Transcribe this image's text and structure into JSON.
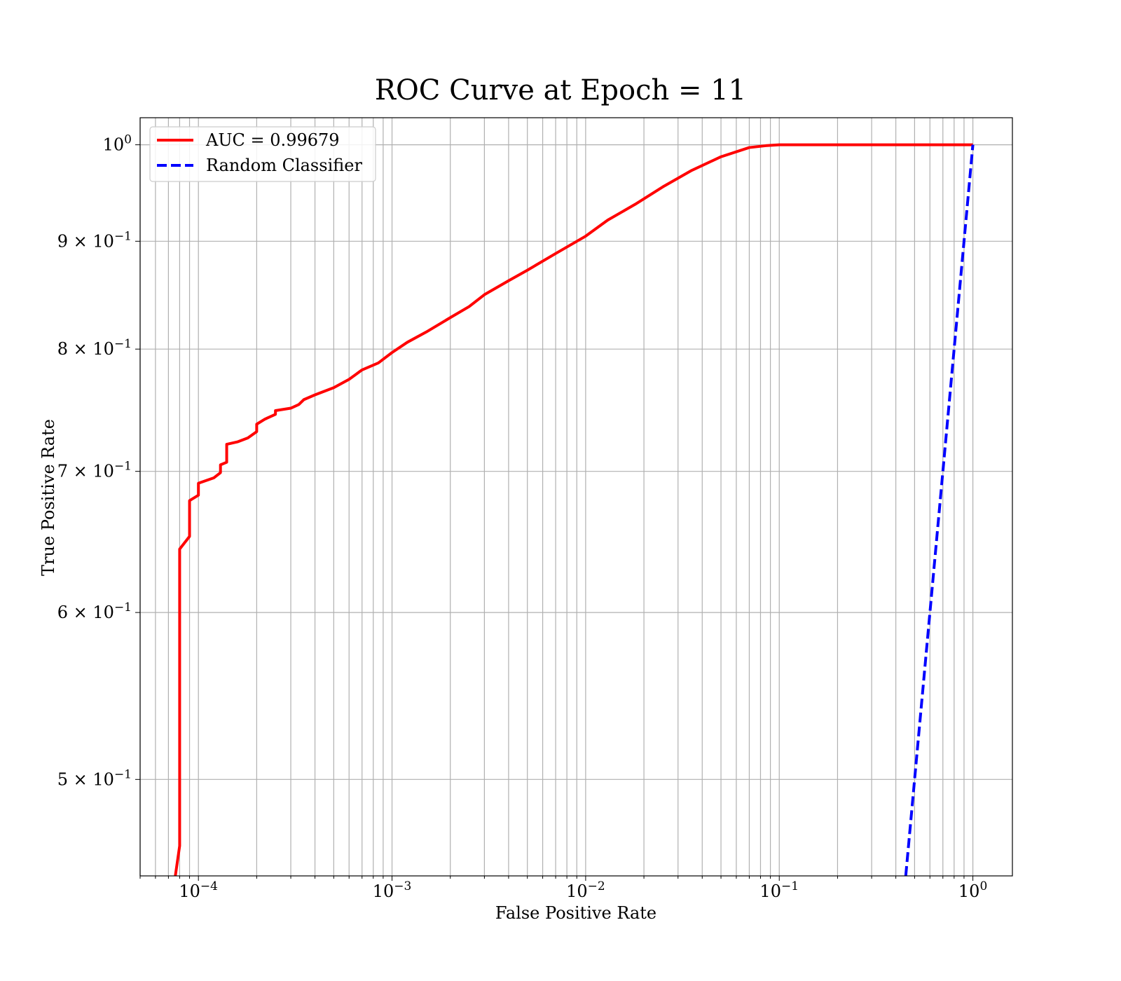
{
  "chart_data": {
    "type": "line",
    "title": "ROC Curve at Epoch = 11",
    "xlabel": "False Positive Rate",
    "ylabel": "True Positive Rate",
    "xscale": "log",
    "yscale": "log",
    "xlim": [
      5e-05,
      1.6
    ],
    "ylim": [
      0.45,
      1.03
    ],
    "grid": true,
    "legend_position": "upper-left",
    "x_ticks": [
      {
        "value": 0.0001,
        "base": "10",
        "exp": "−4"
      },
      {
        "value": 0.001,
        "base": "10",
        "exp": "−3"
      },
      {
        "value": 0.01,
        "base": "10",
        "exp": "−2"
      },
      {
        "value": 0.1,
        "base": "10",
        "exp": "−1"
      },
      {
        "value": 1,
        "base": "10",
        "exp": "0"
      }
    ],
    "y_ticks": [
      {
        "value": 1.0,
        "base": "10",
        "exp": "0"
      },
      {
        "value": 0.9,
        "base": "9 × 10",
        "exp": "−1"
      },
      {
        "value": 0.8,
        "base": "8 × 10",
        "exp": "−1"
      },
      {
        "value": 0.7,
        "base": "7 × 10",
        "exp": "−1"
      },
      {
        "value": 0.6,
        "base": "6 × 10",
        "exp": "−1"
      },
      {
        "value": 0.5,
        "base": "5 × 10",
        "exp": "−1"
      }
    ],
    "series": [
      {
        "name": "AUC = 0.99679",
        "color": "#ff0000",
        "style": "solid",
        "x": [
          7.6e-05,
          8e-05,
          8e-05,
          9e-05,
          9e-05,
          0.0001,
          0.0001,
          0.00012,
          0.00013,
          0.00013,
          0.00014,
          0.00014,
          0.00016,
          0.00018,
          0.0002,
          0.0002,
          0.00022,
          0.00025,
          0.00025,
          0.0003,
          0.00033,
          0.00035,
          0.0004,
          0.0005,
          0.0006,
          0.0007,
          0.00085,
          0.001,
          0.0012,
          0.0015,
          0.002,
          0.0025,
          0.003,
          0.004,
          0.005,
          0.007,
          0.01,
          0.013,
          0.018,
          0.025,
          0.035,
          0.05,
          0.07,
          0.085,
          0.1,
          0.15,
          0.3,
          0.5,
          1.0
        ],
        "y": [
          0.45,
          0.465,
          0.643,
          0.652,
          0.678,
          0.682,
          0.691,
          0.695,
          0.699,
          0.705,
          0.707,
          0.721,
          0.723,
          0.726,
          0.731,
          0.737,
          0.741,
          0.745,
          0.748,
          0.75,
          0.753,
          0.757,
          0.761,
          0.767,
          0.774,
          0.782,
          0.788,
          0.797,
          0.806,
          0.815,
          0.828,
          0.838,
          0.849,
          0.862,
          0.872,
          0.888,
          0.905,
          0.921,
          0.937,
          0.955,
          0.972,
          0.987,
          0.997,
          0.999,
          1.0,
          1.0,
          1.0,
          1.0,
          1.0
        ]
      },
      {
        "name": "Random Classifier",
        "color": "#0000ff",
        "style": "dashed",
        "x": [
          0.45,
          0.5,
          0.6,
          0.7,
          0.8,
          0.9,
          1.0
        ],
        "y": [
          0.45,
          0.5,
          0.6,
          0.7,
          0.8,
          0.9,
          1.0
        ]
      }
    ]
  }
}
